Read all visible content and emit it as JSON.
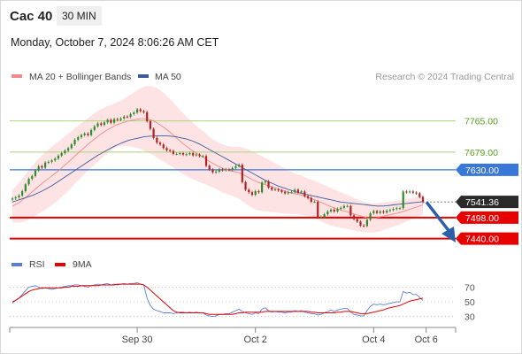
{
  "header": {
    "instrument": "Cac 40",
    "timeframe": "30 MIN",
    "datetime": "Monday, October 7, 2024 8:06:26 AM CET",
    "credit": "Research © 2024 Trading Central"
  },
  "colors": {
    "bollinger_fill": "#fde3e3",
    "ma20": "#f08a8a",
    "ma50": "#3d5c9e",
    "resistance": "#a8d47a",
    "resistance_label": "#5a9f1f",
    "pivot": "#3a78d8",
    "support": "#e60000",
    "candle_up": "#2e8b2e",
    "candle_down": "#b22222",
    "arrow": "#2d5fa8",
    "rsi": "#5b7fd6",
    "rsi_ma": "#e60000"
  },
  "chart_data": [
    {
      "type": "candlestick",
      "legend": [
        {
          "name": "MA 20 + Bollinger Bands",
          "color": "#f08a8a"
        },
        {
          "name": "MA 50",
          "color": "#3d5c9e"
        }
      ],
      "levels": [
        {
          "value": 7765.0,
          "label": "7765.00",
          "kind": "resistance"
        },
        {
          "value": 7679.0,
          "label": "7679.00",
          "kind": "resistance"
        },
        {
          "value": 7630.0,
          "label": "7630.00",
          "kind": "pivot"
        },
        {
          "value": 7541.36,
          "label": "7541.36",
          "kind": "last"
        },
        {
          "value": 7498.0,
          "label": "7498.00",
          "kind": "support"
        },
        {
          "value": 7440.0,
          "label": "7440.00",
          "kind": "support"
        }
      ],
      "x_ticks": [
        {
          "index": 38,
          "label": "Sep 30"
        },
        {
          "index": 74,
          "label": "Oct 2"
        },
        {
          "index": 110,
          "label": "Oct 4"
        },
        {
          "index": 126,
          "label": "Oct 6"
        }
      ],
      "close": [
        7551,
        7554,
        7559,
        7571,
        7590,
        7605,
        7613,
        7628,
        7640,
        7636,
        7650,
        7652,
        7656,
        7661,
        7669,
        7676,
        7683,
        7690,
        7700,
        7713,
        7720,
        7726,
        7730,
        7726,
        7740,
        7750,
        7758,
        7754,
        7761,
        7768,
        7760,
        7770,
        7768,
        7772,
        7777,
        7776,
        7784,
        7788,
        7797,
        7792,
        7789,
        7764,
        7743,
        7718,
        7705,
        7700,
        7690,
        7684,
        7682,
        7674,
        7674,
        7676,
        7672,
        7673,
        7676,
        7670,
        7672,
        7668,
        7668,
        7641,
        7631,
        7623,
        7625,
        7631,
        7629,
        7631,
        7630,
        7635,
        7640,
        7644,
        7596,
        7575,
        7568,
        7561,
        7571,
        7568,
        7595,
        7598,
        7581,
        7575,
        7576,
        7573,
        7569,
        7565,
        7568,
        7568,
        7575,
        7567,
        7570,
        7557,
        7552,
        7542,
        7542,
        7500,
        7500,
        7507,
        7515,
        7520,
        7515,
        7522,
        7525,
        7530,
        7530,
        7504,
        7494,
        7487,
        7476,
        7475,
        7492,
        7510,
        7516,
        7511,
        7515,
        7512,
        7517,
        7519,
        7522,
        7524,
        7524,
        7570,
        7568,
        7570,
        7567,
        7565,
        7555,
        7541
      ],
      "ma20": [
        7530,
        7534,
        7539,
        7546,
        7553,
        7561,
        7569,
        7577,
        7585,
        7592,
        7599,
        7606,
        7613,
        7620,
        7627,
        7635,
        7643,
        7651,
        7659,
        7668,
        7676,
        7684,
        7692,
        7700,
        7708,
        7715,
        7722,
        7729,
        7735,
        7741,
        7746,
        7751,
        7755,
        7758,
        7761,
        7764,
        7766,
        7768,
        7770,
        7771,
        7771,
        7770,
        7768,
        7765,
        7760,
        7754,
        7748,
        7741,
        7734,
        7726,
        7718,
        7710,
        7702,
        7695,
        7688,
        7682,
        7676,
        7670,
        7665,
        7659,
        7653,
        7648,
        7643,
        7638,
        7634,
        7631,
        7628,
        7626,
        7624,
        7622,
        7618,
        7613,
        7608,
        7603,
        7599,
        7595,
        7592,
        7589,
        7586,
        7583,
        7580,
        7577,
        7574,
        7571,
        7568,
        7566,
        7564,
        7562,
        7560,
        7557,
        7554,
        7551,
        7548,
        7544,
        7540,
        7536,
        7532,
        7528,
        7525,
        7522,
        7519,
        7516,
        7514,
        7511,
        7508,
        7505,
        7502,
        7500,
        7498,
        7497,
        7497,
        7498,
        7500,
        7502,
        7504,
        7506,
        7508,
        7510,
        7512,
        7515,
        7518,
        7521,
        7524,
        7527,
        7530,
        7533
      ],
      "ma50": [
        7541,
        7544,
        7547,
        7550,
        7553,
        7556,
        7559,
        7563,
        7567,
        7571,
        7576,
        7581,
        7586,
        7592,
        7598,
        7604,
        7610,
        7616,
        7622,
        7628,
        7634,
        7640,
        7646,
        7652,
        7658,
        7664,
        7670,
        7675,
        7680,
        7685,
        7690,
        7695,
        7699,
        7703,
        7707,
        7710,
        7713,
        7715,
        7717,
        7719,
        7721,
        7722,
        7723,
        7723,
        7724,
        7724,
        7724,
        7724,
        7723,
        7722,
        7721,
        7719,
        7717,
        7715,
        7712,
        7709,
        7705,
        7701,
        7696,
        7691,
        7686,
        7681,
        7676,
        7671,
        7666,
        7661,
        7656,
        7651,
        7646,
        7641,
        7636,
        7631,
        7626,
        7621,
        7616,
        7611,
        7606,
        7601,
        7597,
        7593,
        7589,
        7585,
        7582,
        7579,
        7576,
        7573,
        7570,
        7567,
        7565,
        7563,
        7561,
        7559,
        7557,
        7555,
        7553,
        7551,
        7549,
        7547,
        7545,
        7543,
        7541,
        7540,
        7539,
        7538,
        7537,
        7536,
        7535,
        7534,
        7533,
        7532,
        7531,
        7530,
        7530,
        7530,
        7531,
        7532,
        7533,
        7534,
        7535,
        7536,
        7537,
        7538,
        7539,
        7540,
        7541,
        7542
      ],
      "band_width": [
        45,
        50,
        55,
        60,
        64,
        68,
        71,
        74,
        76,
        78,
        79,
        80,
        81,
        81,
        81,
        80,
        80,
        79,
        78,
        77,
        76,
        75,
        74,
        73,
        72,
        71,
        70,
        69,
        67,
        65,
        63,
        62,
        62,
        63,
        65,
        68,
        72,
        76,
        80,
        84,
        88,
        91,
        93,
        95,
        96,
        96,
        95,
        94,
        92,
        90,
        88,
        86,
        84,
        82,
        80,
        78,
        76,
        74,
        72,
        70,
        68,
        67,
        66,
        66,
        66,
        66,
        67,
        68,
        70,
        72,
        74,
        76,
        78,
        78,
        78,
        77,
        76,
        74,
        72,
        70,
        68,
        66,
        64,
        62,
        60,
        58,
        56,
        55,
        54,
        53,
        52,
        52,
        52,
        52,
        52,
        52,
        52,
        52,
        51,
        50,
        49,
        48,
        47,
        46,
        45,
        44,
        43,
        42,
        41,
        40,
        40,
        40,
        39,
        38,
        37,
        36,
        35,
        34,
        33,
        32,
        31,
        30,
        29,
        28,
        28,
        28
      ],
      "ylim": [
        7395,
        7835
      ]
    },
    {
      "type": "line",
      "legend": [
        {
          "name": "RSI",
          "color": "#5b7fd6"
        },
        {
          "name": "9MA",
          "color": "#e60000"
        }
      ],
      "y_ticks": [
        30,
        50,
        70
      ],
      "rsi": [
        48,
        52,
        55,
        60,
        65,
        70,
        71,
        72,
        70,
        68,
        69,
        68,
        67,
        68,
        69,
        70,
        71,
        72,
        72,
        73,
        73,
        72,
        71,
        70,
        72,
        73,
        74,
        73,
        74,
        75,
        73,
        74,
        73,
        74,
        75,
        74,
        75,
        75,
        76,
        74,
        73,
        55,
        45,
        40,
        38,
        37,
        35,
        35,
        35,
        34,
        35,
        36,
        36,
        35,
        36,
        35,
        36,
        35,
        35,
        32,
        31,
        30,
        31,
        33,
        33,
        34,
        34,
        36,
        38,
        40,
        37,
        35,
        34,
        33,
        35,
        34,
        40,
        42,
        38,
        36,
        37,
        36,
        36,
        35,
        36,
        36,
        38,
        37,
        38,
        36,
        35,
        34,
        34,
        32,
        33,
        35,
        37,
        39,
        37,
        39,
        40,
        41,
        41,
        36,
        33,
        32,
        31,
        31,
        38,
        44,
        47,
        46,
        47,
        46,
        47,
        48,
        49,
        50,
        50,
        64,
        62,
        63,
        60,
        60,
        56,
        52
      ],
      "rsi_ma": [
        50,
        52,
        55,
        58,
        61,
        64,
        66,
        67,
        68,
        69,
        69,
        69,
        69,
        69,
        69,
        69,
        70,
        70,
        71,
        71,
        71,
        72,
        72,
        72,
        72,
        72,
        72,
        73,
        73,
        73,
        73,
        73,
        74,
        74,
        74,
        74,
        74,
        74,
        74,
        74,
        73,
        70,
        66,
        62,
        58,
        54,
        50,
        46,
        42,
        38,
        36,
        35,
        35,
        35,
        35,
        35,
        35,
        35,
        35,
        34,
        33,
        33,
        33,
        33,
        33,
        33,
        33,
        33,
        34,
        35,
        35,
        36,
        36,
        36,
        36,
        36,
        36,
        37,
        37,
        37,
        37,
        37,
        37,
        37,
        37,
        37,
        37,
        37,
        37,
        37,
        37,
        36,
        36,
        35,
        35,
        35,
        35,
        35,
        35,
        36,
        36,
        37,
        37,
        37,
        36,
        35,
        34,
        34,
        34,
        35,
        36,
        37,
        38,
        39,
        41,
        42,
        43,
        44,
        45,
        47,
        49,
        51,
        52,
        53,
        54,
        55
      ],
      "ylim": [
        20,
        85
      ]
    }
  ]
}
